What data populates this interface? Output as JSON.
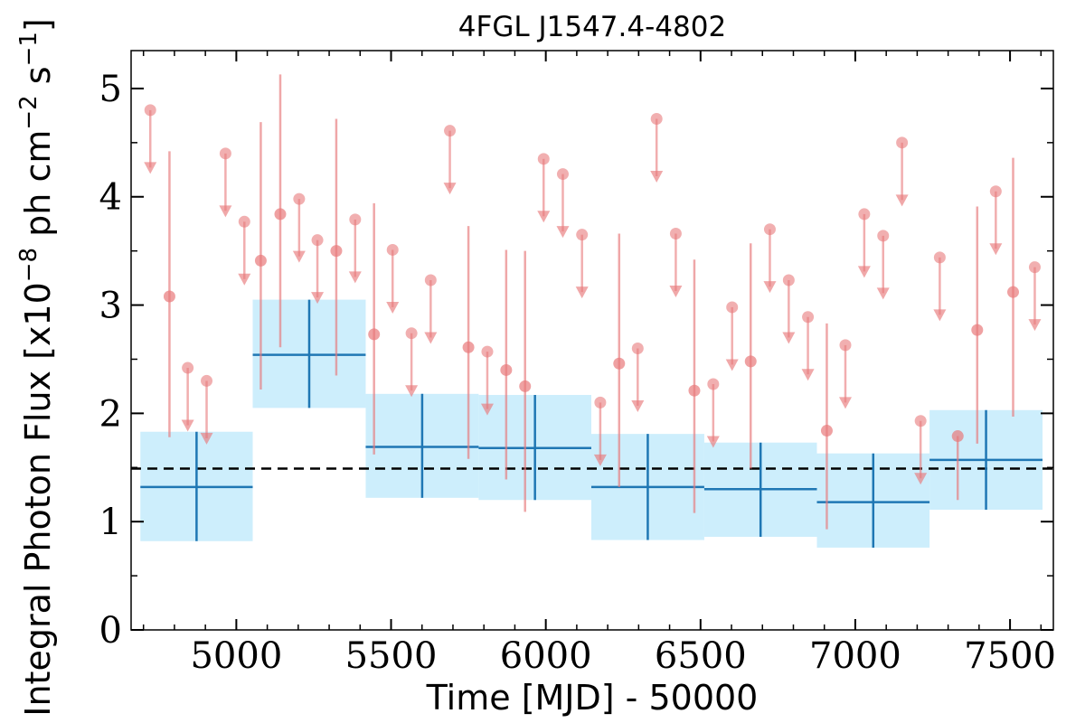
{
  "chart_data": {
    "type": "scatter",
    "title": "4FGL J1547.4-4802",
    "xlabel": "Time [MJD] - 50000",
    "ylabel_prefix": "Integral Photon Flux [x10",
    "ylabel_exp1": "−8",
    "ylabel_mid": " ph cm",
    "ylabel_exp2": "−2",
    "ylabel_mid2": " s",
    "ylabel_exp3": "−1",
    "ylabel_suffix": "]",
    "xlim": [
      4660,
      7640
    ],
    "ylim": [
      0,
      5.35
    ],
    "xticks": [
      5000,
      5500,
      6000,
      6500,
      7000,
      7500
    ],
    "yticks": [
      0,
      1,
      2,
      3,
      4,
      5
    ],
    "reference_line": 1.49,
    "colors": {
      "bins": "#1f77b4",
      "bin_fill": "#cdeefc",
      "points": "#e8797b",
      "reference": "#000000"
    },
    "binned": [
      {
        "x0": 4690,
        "x1": 5053,
        "y": 1.32,
        "ylo": 0.82,
        "yhi": 1.83
      },
      {
        "x0": 5053,
        "x1": 5418,
        "y": 2.54,
        "ylo": 2.05,
        "yhi": 3.05
      },
      {
        "x0": 5418,
        "x1": 5783,
        "y": 1.69,
        "ylo": 1.22,
        "yhi": 2.18
      },
      {
        "x0": 5783,
        "x1": 6147,
        "y": 1.68,
        "ylo": 1.2,
        "yhi": 2.17
      },
      {
        "x0": 6147,
        "x1": 6512,
        "y": 1.32,
        "ylo": 0.83,
        "yhi": 1.81
      },
      {
        "x0": 6512,
        "x1": 6876,
        "y": 1.3,
        "ylo": 0.86,
        "yhi": 1.73
      },
      {
        "x0": 6876,
        "x1": 7240,
        "y": 1.18,
        "ylo": 0.76,
        "yhi": 1.63
      },
      {
        "x0": 7240,
        "x1": 7605,
        "y": 1.57,
        "ylo": 1.11,
        "yhi": 2.03
      }
    ],
    "detections": [
      {
        "x": 4784,
        "y": 3.08,
        "ylo": 1.78,
        "yhi": 4.42
      },
      {
        "x": 5079,
        "y": 3.41,
        "ylo": 2.22,
        "yhi": 4.69
      },
      {
        "x": 5142,
        "y": 3.84,
        "ylo": 2.61,
        "yhi": 5.13
      },
      {
        "x": 5323,
        "y": 3.5,
        "ylo": 2.35,
        "yhi": 4.72
      },
      {
        "x": 5445,
        "y": 2.73,
        "ylo": 1.62,
        "yhi": 3.94
      },
      {
        "x": 5750,
        "y": 2.61,
        "ylo": 1.58,
        "yhi": 3.73
      },
      {
        "x": 5872,
        "y": 2.4,
        "ylo": 1.39,
        "yhi": 3.51
      },
      {
        "x": 5933,
        "y": 2.25,
        "ylo": 1.09,
        "yhi": 3.5
      },
      {
        "x": 6237,
        "y": 2.46,
        "ylo": 1.32,
        "yhi": 3.66
      },
      {
        "x": 6480,
        "y": 2.21,
        "ylo": 1.08,
        "yhi": 3.42
      },
      {
        "x": 6662,
        "y": 2.48,
        "ylo": 1.49,
        "yhi": 3.57
      },
      {
        "x": 6908,
        "y": 1.84,
        "ylo": 0.93,
        "yhi": 2.83
      },
      {
        "x": 7394,
        "y": 2.77,
        "ylo": 1.72,
        "yhi": 3.91
      },
      {
        "x": 7510,
        "y": 3.12,
        "ylo": 1.97,
        "yhi": 4.36
      },
      {
        "x": 7331,
        "y": 1.79,
        "ylo": 1.2,
        "yhi": 1.79
      }
    ],
    "upper_limits": [
      {
        "x": 4722,
        "y": 4.8,
        "arrow_to": 4.22
      },
      {
        "x": 4843,
        "y": 2.42,
        "arrow_to": 1.84
      },
      {
        "x": 4904,
        "y": 2.3,
        "arrow_to": 1.72
      },
      {
        "x": 4965,
        "y": 4.4,
        "arrow_to": 3.82
      },
      {
        "x": 5026,
        "y": 3.77,
        "arrow_to": 3.19
      },
      {
        "x": 5203,
        "y": 3.98,
        "arrow_to": 3.4
      },
      {
        "x": 5262,
        "y": 3.6,
        "arrow_to": 3.02
      },
      {
        "x": 5384,
        "y": 3.79,
        "arrow_to": 3.21
      },
      {
        "x": 5505,
        "y": 3.51,
        "arrow_to": 2.93
      },
      {
        "x": 5566,
        "y": 2.74,
        "arrow_to": 2.16
      },
      {
        "x": 5628,
        "y": 3.23,
        "arrow_to": 2.65
      },
      {
        "x": 5690,
        "y": 4.61,
        "arrow_to": 4.03
      },
      {
        "x": 5811,
        "y": 2.57,
        "arrow_to": 1.99
      },
      {
        "x": 5993,
        "y": 4.35,
        "arrow_to": 3.77
      },
      {
        "x": 6055,
        "y": 4.21,
        "arrow_to": 3.63
      },
      {
        "x": 6117,
        "y": 3.65,
        "arrow_to": 3.07
      },
      {
        "x": 6176,
        "y": 2.1,
        "arrow_to": 1.52
      },
      {
        "x": 6297,
        "y": 2.6,
        "arrow_to": 2.02
      },
      {
        "x": 6358,
        "y": 4.72,
        "arrow_to": 4.14
      },
      {
        "x": 6420,
        "y": 3.66,
        "arrow_to": 3.08
      },
      {
        "x": 6541,
        "y": 2.27,
        "arrow_to": 1.69
      },
      {
        "x": 6602,
        "y": 2.98,
        "arrow_to": 2.4
      },
      {
        "x": 6724,
        "y": 3.7,
        "arrow_to": 3.12
      },
      {
        "x": 6785,
        "y": 3.23,
        "arrow_to": 2.65
      },
      {
        "x": 6847,
        "y": 2.89,
        "arrow_to": 2.31
      },
      {
        "x": 6968,
        "y": 2.63,
        "arrow_to": 2.05
      },
      {
        "x": 7029,
        "y": 3.84,
        "arrow_to": 3.26
      },
      {
        "x": 7090,
        "y": 3.64,
        "arrow_to": 3.06
      },
      {
        "x": 7151,
        "y": 4.5,
        "arrow_to": 3.92
      },
      {
        "x": 7211,
        "y": 1.93,
        "arrow_to": 1.35
      },
      {
        "x": 7273,
        "y": 3.44,
        "arrow_to": 2.86
      },
      {
        "x": 7454,
        "y": 4.05,
        "arrow_to": 3.47
      },
      {
        "x": 7580,
        "y": 3.35,
        "arrow_to": 2.77
      }
    ]
  }
}
